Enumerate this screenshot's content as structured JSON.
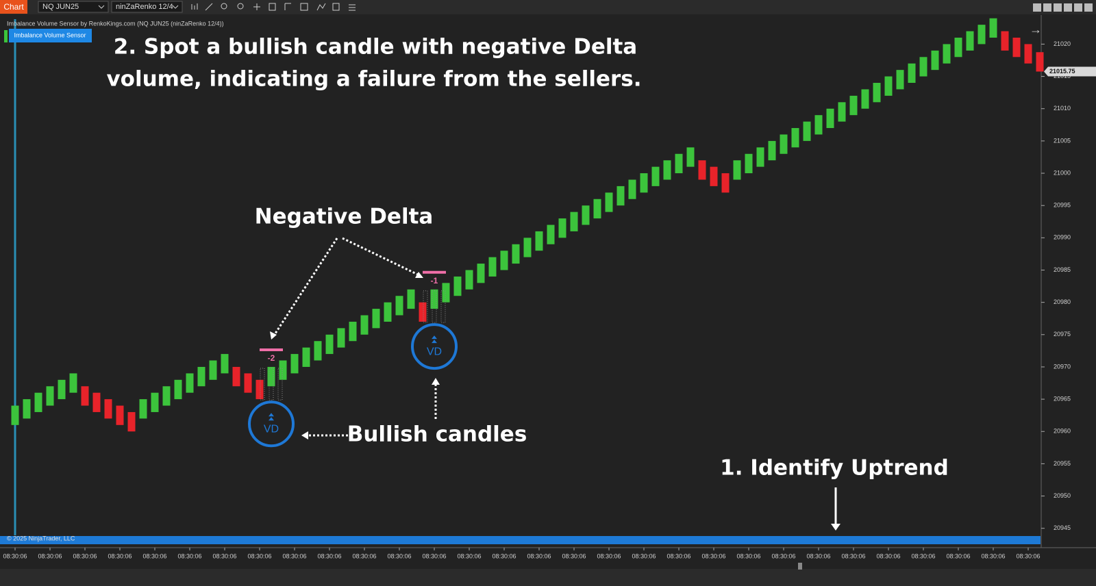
{
  "ui": {
    "app_tab": "Chart",
    "instrument": "NQ JUN25",
    "bar_type": "ninZaRenko 12/4",
    "indicator_title": "Imbalance Volume Sensor by RenkoKings.com (NQ JUN25 (ninZaRenko 12/4))",
    "indicator_button": "Imbalance Volume Sensor",
    "copyright": "© 2025 NinjaTrader, LLC"
  },
  "chart_data": {
    "type": "candlestick",
    "categories": [
      "08:30:06",
      null,
      null,
      "08:30:06",
      null,
      null,
      "08:30:06",
      null,
      null,
      "08:30:06",
      null,
      null,
      "08:30:06",
      null,
      null,
      "08:30:06",
      null,
      null,
      "08:30:06",
      null,
      null,
      "08:30:06",
      null,
      null,
      "08:30:06",
      null,
      null,
      "08:30:06",
      null,
      null,
      "08:30:06",
      null,
      null,
      "08:30:06",
      null,
      null,
      "08:30:06",
      null,
      null,
      "08:30:06",
      null,
      null,
      "08:30:06",
      null,
      null,
      "08:30:06",
      null,
      null,
      "08:30:06",
      null,
      null,
      "08:30:06",
      null,
      null,
      "08:30:06",
      null,
      null,
      "08:30:06",
      null,
      null,
      "08:30:06",
      null,
      null,
      "08:30:06",
      null,
      null,
      "08:30:06",
      null,
      null,
      "08:30:06",
      null,
      null,
      "08:30:06",
      null,
      null,
      "08:30:06",
      null,
      null,
      "08:30:06",
      null,
      null,
      "08:30:06",
      null,
      null,
      "08:30:06",
      null,
      null,
      "08:30:06",
      null
    ],
    "open": [
      20961,
      20962,
      20963,
      20964,
      20965,
      20966,
      20967,
      20966,
      20965,
      20964,
      20963,
      20962,
      20963,
      20964,
      20965,
      20966,
      20967,
      20968,
      20969,
      20970,
      20969,
      20968,
      20967,
      20968,
      20969,
      20970,
      20971,
      20972,
      20973,
      20974,
      20975,
      20976,
      20977,
      20978,
      20979,
      20980,
      20979,
      20980,
      20981,
      20982,
      20983,
      20984,
      20985,
      20986,
      20987,
      20988,
      20989,
      20990,
      20991,
      20992,
      20993,
      20994,
      20995,
      20996,
      20997,
      20998,
      20999,
      21000,
      21001,
      21002,
      21001,
      21000,
      20999,
      21000,
      21001,
      21002,
      21003,
      21004,
      21005,
      21006,
      21007,
      21008,
      21009,
      21010,
      21011,
      21012,
      21013,
      21014,
      21015,
      21016,
      21017,
      21018,
      21019,
      21020,
      21021,
      21022,
      21021,
      21020,
      21018.75
    ],
    "close": [
      20964,
      20965,
      20966,
      20967,
      20968,
      20969,
      20964,
      20963,
      20962,
      20961,
      20960,
      20965,
      20966,
      20967,
      20968,
      20969,
      20970,
      20971,
      20972,
      20967,
      20966,
      20965,
      20970,
      20971,
      20972,
      20973,
      20974,
      20975,
      20976,
      20977,
      20978,
      20979,
      20980,
      20981,
      20982,
      20977,
      20982,
      20983,
      20984,
      20985,
      20986,
      20987,
      20988,
      20989,
      20990,
      20991,
      20992,
      20993,
      20994,
      20995,
      20996,
      20997,
      20998,
      20999,
      21000,
      21001,
      21002,
      21003,
      21004,
      20999,
      20998,
      20997,
      21002,
      21003,
      21004,
      21005,
      21006,
      21007,
      21008,
      21009,
      21010,
      21011,
      21012,
      21013,
      21014,
      21015,
      21016,
      21017,
      21018,
      21019,
      21020,
      21021,
      21022,
      21023,
      21024,
      21019,
      21018,
      21017,
      21015.75
    ],
    "up_color": "#3cc43c",
    "down_color": "#e8232a",
    "ylim": [
      20942,
      21024.5
    ],
    "yticks": [
      20945,
      20950,
      20955,
      20960,
      20965,
      20970,
      20975,
      20980,
      20985,
      20990,
      20995,
      21000,
      21005,
      21010,
      21015,
      21020
    ],
    "last_price": 21015.75,
    "signals": [
      {
        "delta": -2,
        "marker": "VD"
      },
      {
        "delta": -1,
        "marker": "VD"
      }
    ],
    "annotations": {
      "step2": "2. Spot a bullish candle with negative Delta",
      "step2_line2": "volume, indicating a failure from the sellers.",
      "negative_delta": "Negative Delta",
      "bullish_candles": "Bullish candles",
      "step1": "1. Identify Uptrend"
    }
  }
}
